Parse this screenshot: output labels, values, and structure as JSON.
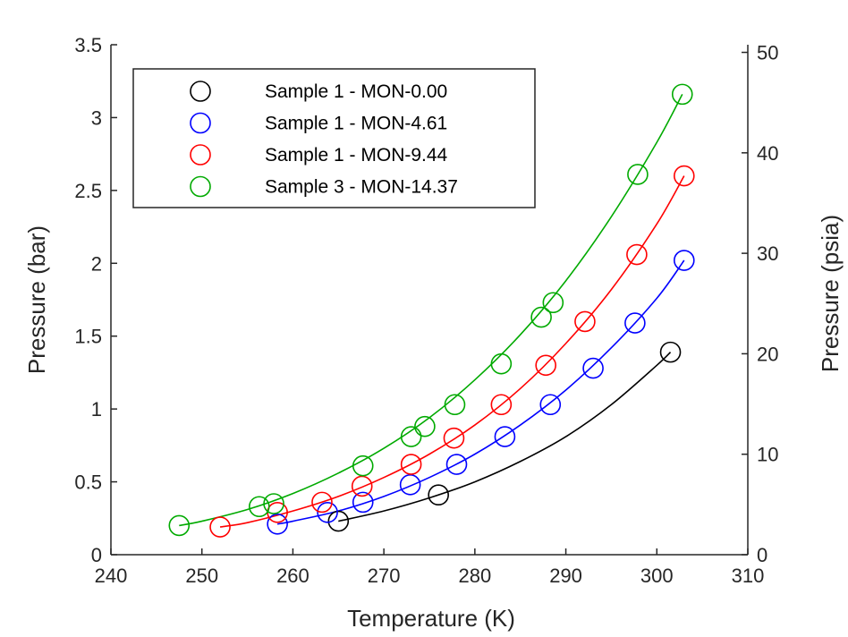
{
  "chart_data": {
    "type": "scatter",
    "title": "",
    "xlabel": "Temperature (K)",
    "ylabel": "Pressure (bar)",
    "y2label": "Pressure (psia)",
    "xlim": [
      240,
      310
    ],
    "ylim": [
      0,
      3.5
    ],
    "y2lim": [
      0,
      50.76
    ],
    "xticks": [
      "240",
      "250",
      "260",
      "270",
      "280",
      "290",
      "300",
      "310"
    ],
    "yticks": [
      "0",
      "0.5",
      "1",
      "1.5",
      "2",
      "2.5",
      "3",
      "3.5"
    ],
    "y2ticks": [
      "0",
      "10",
      "20",
      "30",
      "40",
      "50"
    ],
    "grid": false,
    "legend_position": "top-left",
    "series": [
      {
        "name": "Sample 1 - MON-0.00",
        "color": "#000000",
        "x": [
          265.0,
          276.0,
          301.5
        ],
        "y": [
          0.23,
          0.41,
          1.39
        ],
        "fit": [
          [
            265.0,
            0.23
          ],
          [
            270.0,
            0.3
          ],
          [
            275.0,
            0.39
          ],
          [
            280.0,
            0.5
          ],
          [
            285.0,
            0.64
          ],
          [
            290.0,
            0.81
          ],
          [
            295.0,
            1.03
          ],
          [
            300.0,
            1.3
          ],
          [
            301.5,
            1.39
          ]
        ]
      },
      {
        "name": "Sample 1 - MON-4.61",
        "color": "#0000ff",
        "x": [
          258.3,
          263.8,
          267.7,
          272.9,
          278.0,
          283.3,
          288.3,
          293.0,
          297.6,
          303.0
        ],
        "y": [
          0.21,
          0.29,
          0.36,
          0.48,
          0.62,
          0.81,
          1.03,
          1.28,
          1.59,
          2.02
        ],
        "fit": [
          [
            258.3,
            0.21
          ],
          [
            260.0,
            0.23
          ],
          [
            265.0,
            0.3
          ],
          [
            270.0,
            0.4
          ],
          [
            275.0,
            0.53
          ],
          [
            280.0,
            0.69
          ],
          [
            285.0,
            0.89
          ],
          [
            290.0,
            1.13
          ],
          [
            295.0,
            1.42
          ],
          [
            300.0,
            1.76
          ],
          [
            303.0,
            2.02
          ]
        ]
      },
      {
        "name": "Sample 1 - MON-9.44",
        "color": "#ff0000",
        "x": [
          252.0,
          258.3,
          263.2,
          267.6,
          273.0,
          277.7,
          282.9,
          287.8,
          292.1,
          297.8,
          303.0
        ],
        "y": [
          0.19,
          0.29,
          0.36,
          0.47,
          0.62,
          0.8,
          1.03,
          1.3,
          1.6,
          2.06,
          2.6
        ],
        "fit": [
          [
            252.0,
            0.19
          ],
          [
            255.0,
            0.22
          ],
          [
            260.0,
            0.3
          ],
          [
            265.0,
            0.4
          ],
          [
            270.0,
            0.53
          ],
          [
            275.0,
            0.69
          ],
          [
            280.0,
            0.89
          ],
          [
            285.0,
            1.14
          ],
          [
            290.0,
            1.45
          ],
          [
            295.0,
            1.82
          ],
          [
            300.0,
            2.27
          ],
          [
            303.0,
            2.6
          ]
        ]
      },
      {
        "name": "Sample 3 - MON-14.37",
        "color": "#00aa00",
        "x": [
          247.5,
          256.3,
          257.9,
          267.7,
          273.0,
          274.5,
          277.8,
          282.9,
          287.3,
          288.6,
          297.9,
          302.8
        ],
        "y": [
          0.2,
          0.33,
          0.35,
          0.61,
          0.81,
          0.88,
          1.03,
          1.31,
          1.63,
          1.73,
          2.61,
          3.16
        ],
        "fit": [
          [
            247.5,
            0.2
          ],
          [
            250.0,
            0.23
          ],
          [
            255.0,
            0.31
          ],
          [
            260.0,
            0.42
          ],
          [
            265.0,
            0.56
          ],
          [
            270.0,
            0.73
          ],
          [
            275.0,
            0.94
          ],
          [
            280.0,
            1.2
          ],
          [
            285.0,
            1.51
          ],
          [
            290.0,
            1.88
          ],
          [
            295.0,
            2.32
          ],
          [
            300.0,
            2.83
          ],
          [
            302.8,
            3.16
          ]
        ]
      }
    ]
  }
}
